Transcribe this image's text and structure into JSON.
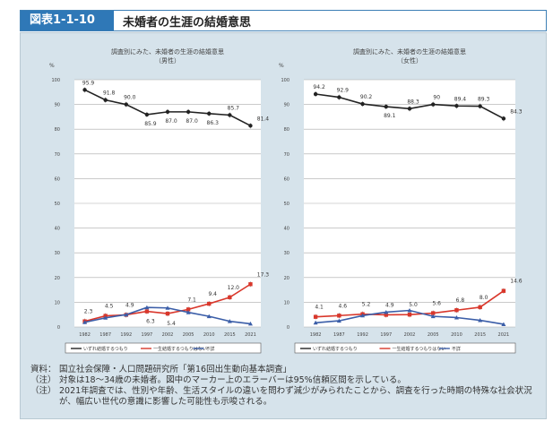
{
  "header": {
    "figure_number": "図表1-1-10",
    "title": "未婚者の生涯の結婚意思"
  },
  "colors": {
    "intend": "#222222",
    "never": "#d9372b",
    "unknown": "#3b5ea8",
    "panel": "#d6e3eb",
    "accent": "#2f78b7"
  },
  "chart_data": [
    {
      "type": "line",
      "title": "調査別にみた、未婚者の生涯の結婚意思",
      "subtitle": "（男性）",
      "ylabel": "%",
      "ylim": [
        0,
        100
      ],
      "yticks": [
        0,
        10,
        20,
        30,
        40,
        50,
        60,
        70,
        80,
        90,
        100
      ],
      "grid": true,
      "legend": "bottom",
      "categories": [
        "1982",
        "1987",
        "1992",
        "1997",
        "2002",
        "2005",
        "2010",
        "2015",
        "2021"
      ],
      "series": [
        {
          "name": "いずれ結婚するつもり",
          "values": [
            95.9,
            91.8,
            90.0,
            85.9,
            87.0,
            87.0,
            86.3,
            85.7,
            81.4
          ],
          "labels": [
            "95.9",
            "91.8",
            "90.0",
            "85.9",
            "87.0",
            "87.0",
            "86.3",
            "85.7",
            "81.4"
          ]
        },
        {
          "name": "一生結婚するつもりはない",
          "values": [
            2.3,
            4.5,
            4.9,
            6.3,
            5.4,
            7.1,
            9.4,
            12.0,
            17.3
          ],
          "labels": [
            "2.3",
            "4.5",
            "4.9",
            "6.3",
            "5.4",
            "7.1",
            "9.4",
            "12.0",
            "17.3"
          ]
        },
        {
          "name": "不詳",
          "values": [
            1.9,
            3.7,
            5.0,
            7.9,
            7.7,
            5.9,
            4.3,
            2.3,
            1.3
          ]
        }
      ]
    },
    {
      "type": "line",
      "title": "調査別にみた、未婚者の生涯の結婚意思",
      "subtitle": "（女性）",
      "ylabel": "%",
      "ylim": [
        0,
        100
      ],
      "yticks": [
        0,
        10,
        20,
        30,
        40,
        50,
        60,
        70,
        80,
        90,
        100
      ],
      "grid": true,
      "legend": "bottom",
      "categories": [
        "1982",
        "1987",
        "1992",
        "1997",
        "2002",
        "2005",
        "2010",
        "2015",
        "2021"
      ],
      "series": [
        {
          "name": "いずれ結婚するつもり",
          "values": [
            94.2,
            92.9,
            90.2,
            89.1,
            88.3,
            90,
            89.4,
            89.3,
            84.3
          ],
          "labels": [
            "94.2",
            "92.9",
            "90.2",
            "89.1",
            "88.3",
            "90",
            "89.4",
            "89.3",
            "84.3"
          ]
        },
        {
          "name": "一生結婚するつもりはない",
          "values": [
            4.1,
            4.6,
            5.2,
            4.9,
            5.0,
            5.6,
            6.8,
            8.0,
            14.6
          ],
          "labels": [
            "4.1",
            "4.6",
            "5.2",
            "4.9",
            "5.0",
            "5.6",
            "6.8",
            "8.0",
            "14.6"
          ]
        },
        {
          "name": "不詳",
          "values": [
            1.7,
            2.5,
            4.6,
            6.0,
            6.7,
            4.3,
            3.8,
            2.7,
            1.1
          ]
        }
      ]
    }
  ],
  "notes": [
    {
      "key": "資料：",
      "text": "国立社会保障・人口問題研究所「第16回出生動向基本調査」"
    },
    {
      "key": "（注）",
      "text": "対象は18～34歳の未婚者。図中のマーカー上のエラーバーは95%信頼区間を示している。"
    },
    {
      "key": "（注）",
      "text": "2021年調査では、性別や年齢、生活スタイルの違いを問わず減少がみられたことから、調査を行った時期の特殊な社会状況が、幅広い世代の意識に影響した可能性も示唆される。"
    }
  ]
}
